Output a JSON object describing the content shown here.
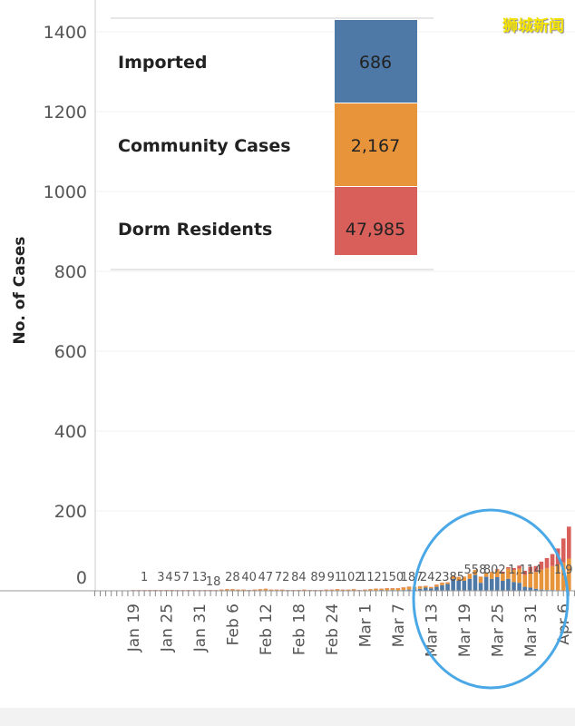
{
  "watermark": "狮城新闻",
  "chart_data": {
    "type": "bar",
    "stacked": true,
    "title": "",
    "ylabel": "No. of Cases",
    "xlabel": "",
    "ylim": [
      0,
      1400
    ],
    "yticks": [
      "0",
      "200",
      "400",
      "600",
      "800",
      "1000",
      "1200",
      "1400"
    ],
    "start_date": "Jan 19",
    "xticks": [
      {
        "day": 0,
        "label": "Jan 19"
      },
      {
        "day": 6,
        "label": "Jan 25"
      },
      {
        "day": 12,
        "label": "Jan 31"
      },
      {
        "day": 18,
        "label": "Feb 6"
      },
      {
        "day": 24,
        "label": "Feb 12"
      },
      {
        "day": 30,
        "label": "Feb 18"
      },
      {
        "day": 36,
        "label": "Feb 24"
      },
      {
        "day": 42,
        "label": "Mar 1"
      },
      {
        "day": 48,
        "label": "Mar 7"
      },
      {
        "day": 54,
        "label": "Mar 13"
      },
      {
        "day": 60,
        "label": "Mar 19"
      },
      {
        "day": 66,
        "label": "Mar 25"
      },
      {
        "day": 72,
        "label": "Mar 31"
      },
      {
        "day": 78,
        "label": "Apr 6"
      }
    ],
    "series": [
      {
        "name": "Imported",
        "color": "#4e79a7",
        "values": [
          0,
          0,
          0,
          1,
          1,
          0,
          1,
          1,
          0,
          0,
          1,
          0,
          0,
          0,
          1,
          0,
          0,
          0,
          0,
          0,
          0,
          0,
          0,
          0,
          0,
          0,
          0,
          0,
          0,
          0,
          0,
          0,
          0,
          0,
          0,
          0,
          0,
          0,
          0,
          0,
          0,
          0,
          0,
          0,
          1,
          2,
          1,
          2,
          1,
          2,
          3,
          4,
          5,
          8,
          6,
          10,
          14,
          17,
          30,
          25,
          25,
          30,
          40,
          20,
          35,
          30,
          34,
          25,
          30,
          22,
          20,
          10,
          8,
          5,
          3,
          2,
          2,
          1,
          1,
          0
        ]
      },
      {
        "name": "Community Cases",
        "color": "#e8943a",
        "values": [
          0,
          0,
          0,
          0,
          0,
          0,
          0,
          0,
          0,
          0,
          0,
          0,
          0,
          0,
          0,
          0,
          2,
          3,
          3,
          2,
          2,
          1,
          2,
          3,
          4,
          2,
          2,
          2,
          1,
          1,
          1,
          2,
          1,
          1,
          1,
          2,
          2,
          3,
          2,
          2,
          3,
          1,
          2,
          3,
          4,
          3,
          5,
          4,
          5,
          6,
          7,
          5,
          6,
          4,
          3,
          5,
          6,
          4,
          8,
          9,
          10,
          12,
          12,
          15,
          10,
          17,
          18,
          20,
          25,
          30,
          35,
          30,
          40,
          42,
          50,
          55,
          60,
          65,
          70,
          80
        ]
      },
      {
        "name": "Dorm Residents",
        "color": "#d95f5a",
        "values": [
          0,
          0,
          0,
          0,
          0,
          0,
          0,
          0,
          0,
          0,
          0,
          0,
          0,
          0,
          0,
          0,
          0,
          0,
          0,
          0,
          0,
          0,
          0,
          0,
          0,
          0,
          0,
          0,
          0,
          0,
          0,
          0,
          0,
          0,
          0,
          0,
          0,
          0,
          0,
          0,
          0,
          0,
          0,
          0,
          0,
          0,
          0,
          0,
          0,
          0,
          0,
          0,
          0,
          0,
          0,
          0,
          0,
          0,
          0,
          0,
          0,
          0,
          0,
          0,
          0,
          0,
          2,
          3,
          4,
          5,
          8,
          10,
          12,
          15,
          20,
          25,
          30,
          40,
          60,
          80
        ]
      }
    ],
    "cumulative_labels": [
      {
        "day": 2,
        "text": "1"
      },
      {
        "day": 5,
        "text": "3"
      },
      {
        "day": 6.5,
        "text": "4"
      },
      {
        "day": 8,
        "text": "5"
      },
      {
        "day": 9.5,
        "text": "7"
      },
      {
        "day": 12,
        "text": "13"
      },
      {
        "day": 14.5,
        "text": "18"
      },
      {
        "day": 18,
        "text": "28"
      },
      {
        "day": 21,
        "text": "40"
      },
      {
        "day": 24,
        "text": "47"
      },
      {
        "day": 27,
        "text": "72"
      },
      {
        "day": 30,
        "text": "84"
      },
      {
        "day": 33.5,
        "text": "89"
      },
      {
        "day": 36.5,
        "text": "91"
      },
      {
        "day": 39.5,
        "text": "102"
      },
      {
        "day": 43,
        "text": "112"
      },
      {
        "day": 47,
        "text": "150"
      },
      {
        "day": 50.5,
        "text": "187"
      },
      {
        "day": 54,
        "text": "242"
      },
      {
        "day": 58,
        "text": "385"
      },
      {
        "day": 62,
        "text": "558"
      },
      {
        "day": 65.5,
        "text": "802"
      },
      {
        "day": 71,
        "text": "1,114"
      },
      {
        "day": 78,
        "text": "1,9"
      }
    ],
    "legend": {
      "placement": "top",
      "items": [
        {
          "label": "Imported",
          "value": "686",
          "color": "#4e79a7"
        },
        {
          "label": "Community Cases",
          "value": "2,167",
          "color": "#e8943a"
        },
        {
          "label": "Dorm Residents",
          "value": "47,985",
          "color": "#d95f5a"
        }
      ]
    },
    "annotation": {
      "type": "ellipse",
      "color": "#4aa8e6",
      "covers": "Mar 13 - Apr 1"
    }
  }
}
